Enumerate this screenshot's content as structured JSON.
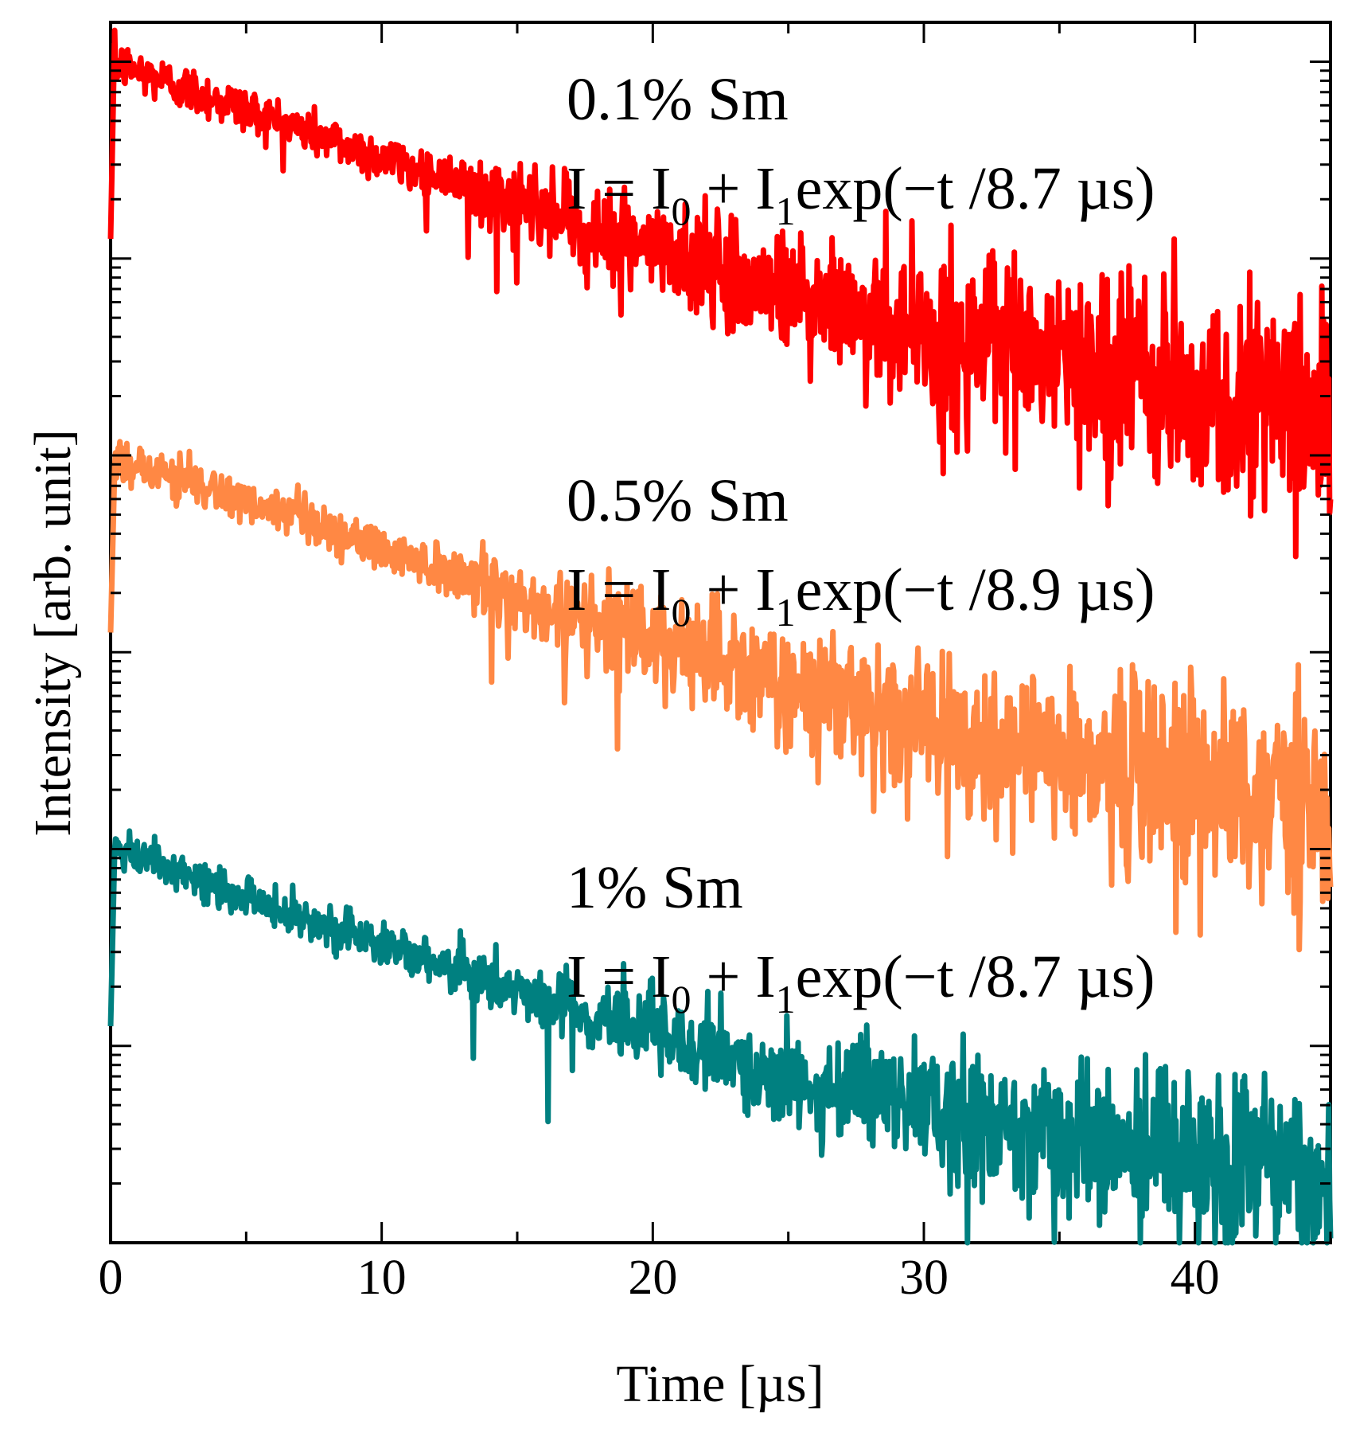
{
  "chart_data": {
    "type": "line",
    "title": "",
    "xlabel": "Time [µs]",
    "ylabel": "Intensity [arb. unit]",
    "xlim": [
      0,
      45
    ],
    "ylim_decades_log": [
      0,
      6.2
    ],
    "xticks": [
      0,
      10,
      20,
      30,
      40
    ],
    "x_tick_labels": [
      "0",
      "10",
      "20",
      "30",
      "40"
    ],
    "y_tick_labels_shown": false,
    "series": [
      {
        "name": "0.1% Sm",
        "color": "#ff0000",
        "label": "0.1% Sm",
        "fit_prefix": "I = I",
        "fit_mid": " + I",
        "fit_suffix": "exp(−t /8.7 µs)",
        "sub0": "0",
        "sub1": "1",
        "tau_us": 8.7,
        "peak_log_decades": 6.0,
        "noise_floor_log_decades": 4.1,
        "noise_amplitude": 0.06
      },
      {
        "name": "0.5% Sm",
        "color": "#ff8844",
        "label": "0.5% Sm",
        "fit_prefix": "I = I",
        "fit_mid": " + I",
        "fit_suffix": "exp(−t /8.9 µs)",
        "sub0": "0",
        "sub1": "1",
        "tau_us": 8.9,
        "peak_log_decades": 4.0,
        "noise_floor_log_decades": 2.0,
        "noise_amplitude": 0.06
      },
      {
        "name": "1% Sm",
        "color": "#008080",
        "label": "1% Sm",
        "fit_prefix": "I = I",
        "fit_mid": " + I",
        "fit_suffix": "exp(−t /8.7 µs)",
        "sub0": "0",
        "sub1": "1",
        "tau_us": 8.7,
        "peak_log_decades": 2.0,
        "noise_floor_log_decades": 0.2,
        "noise_amplitude": 0.05
      }
    ]
  }
}
